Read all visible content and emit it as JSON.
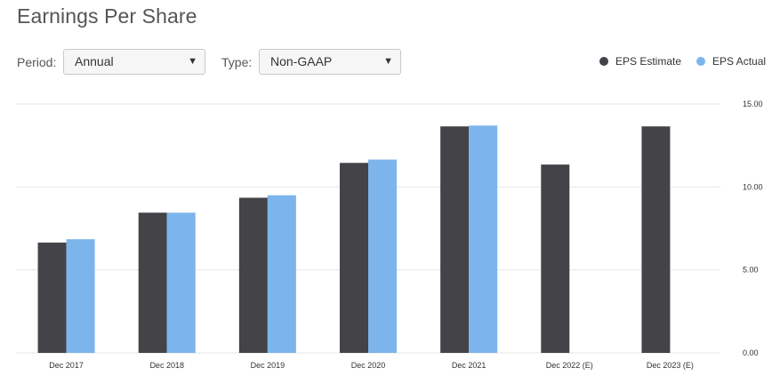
{
  "header": {
    "title": "Earnings Per Share"
  },
  "controls": {
    "period_label": "Period:",
    "period_value": "Annual",
    "type_label": "Type:",
    "type_value": "Non-GAAP",
    "dropdown_arrow": "▼"
  },
  "colors": {
    "estimate": "#434348",
    "actual": "#7cb5ec",
    "grid": "#e6e6e6"
  },
  "chart_data": {
    "type": "bar",
    "title": "Earnings Per Share",
    "categories": [
      "Dec 2017",
      "Dec 2018",
      "Dec 2019",
      "Dec 2020",
      "Dec 2021",
      "Dec 2022 (E)",
      "Dec 2023 (E)"
    ],
    "series": [
      {
        "name": "EPS Estimate",
        "values": [
          6.65,
          8.45,
          9.35,
          11.45,
          13.65,
          11.35,
          13.65
        ]
      },
      {
        "name": "EPS Actual",
        "values": [
          6.85,
          8.45,
          9.5,
          11.65,
          13.7,
          null,
          null
        ]
      }
    ],
    "ylim": [
      0,
      15
    ],
    "yticks": [
      0,
      5,
      10,
      15
    ],
    "ytick_labels": [
      "0.00",
      "5.00",
      "10.00",
      "15.00"
    ],
    "y_axis_side": "right",
    "grid": true,
    "legend_position": "top-right",
    "xlabel": "",
    "ylabel": ""
  }
}
